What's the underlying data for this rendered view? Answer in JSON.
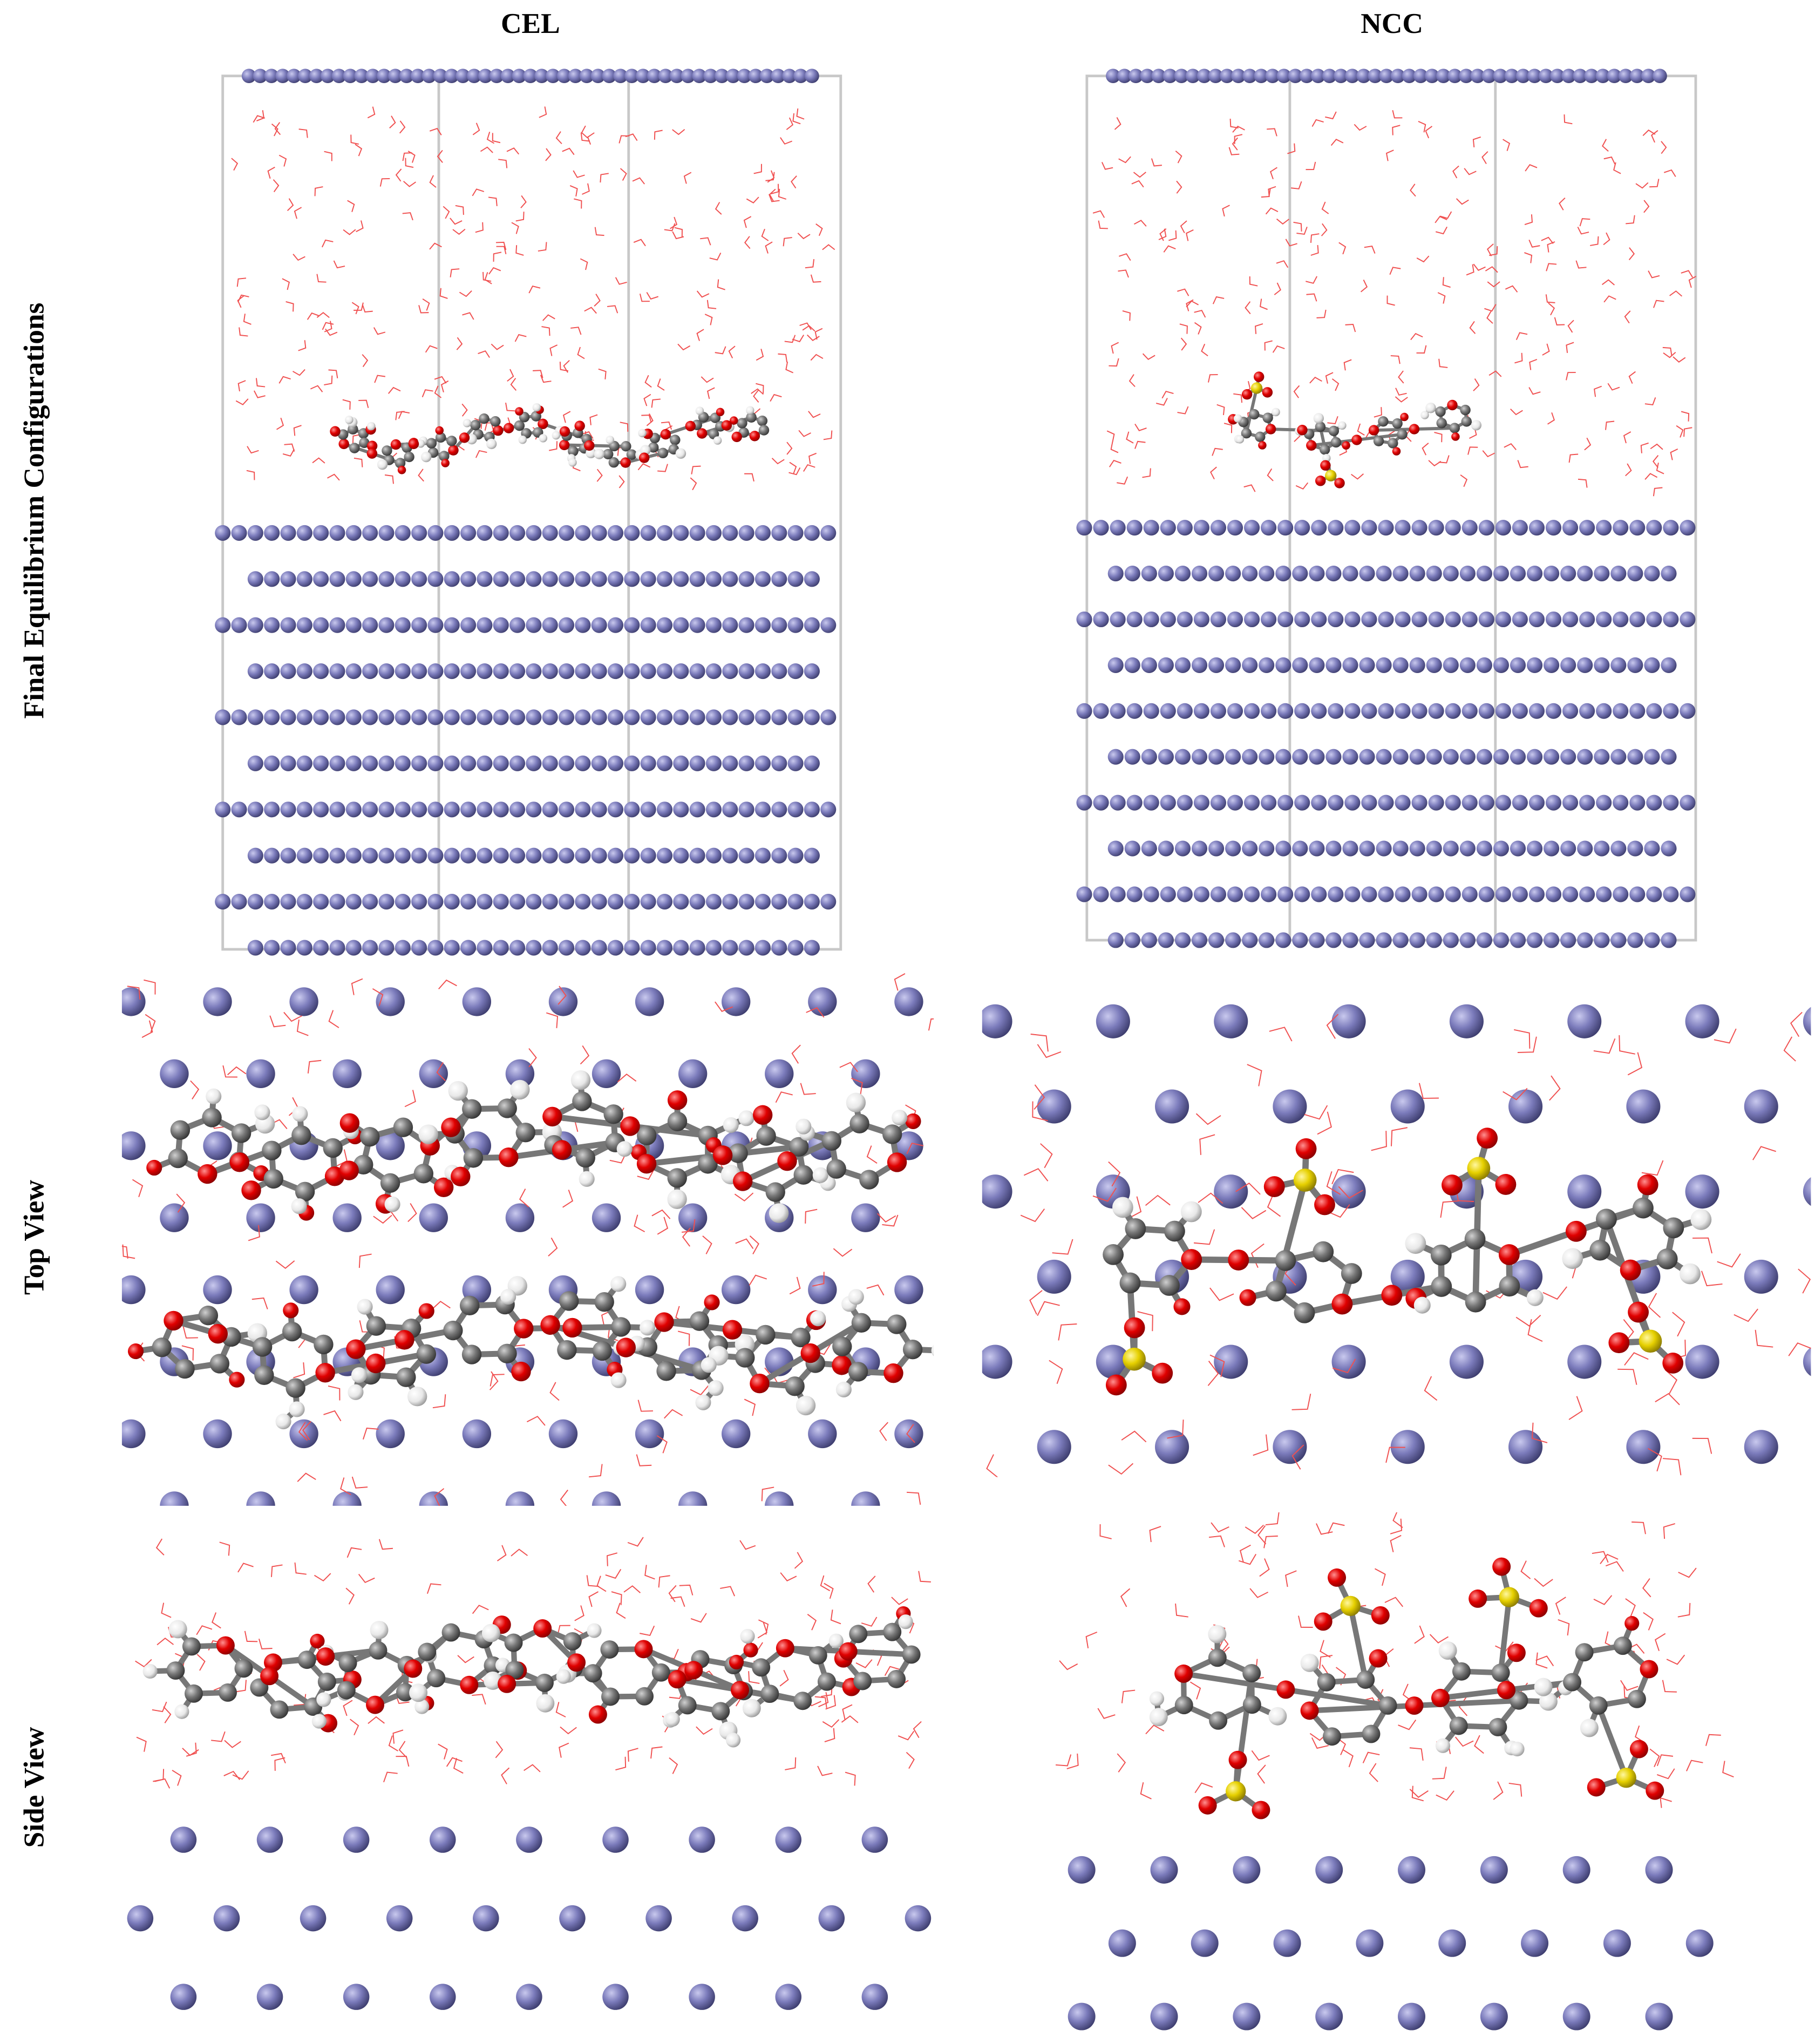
{
  "columns": [
    "CEL",
    "NCC"
  ],
  "rows": [
    "Final Equilibrium Configurations",
    "Top View",
    "Side View"
  ]
}
